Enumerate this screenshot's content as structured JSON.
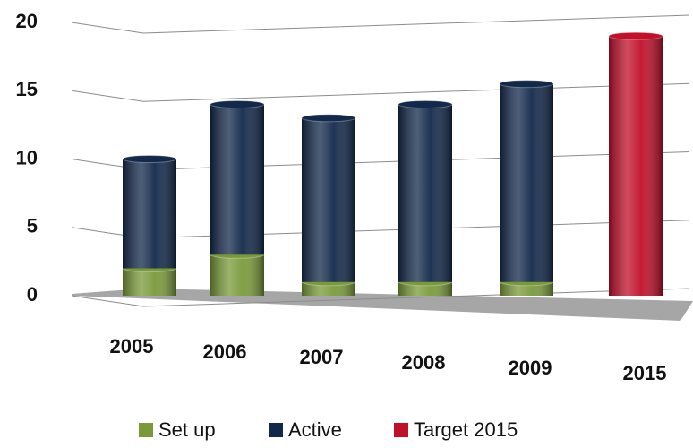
{
  "chart_data": {
    "type": "bar",
    "stacked": true,
    "categories": [
      "2005",
      "2006",
      "2007",
      "2008",
      "2009",
      "2015"
    ],
    "series": [
      {
        "name": "Set up",
        "color": "#7a9a3a",
        "values": [
          2,
          3,
          1,
          1,
          1,
          null
        ]
      },
      {
        "name": "Active",
        "color": "#13294b",
        "values": [
          8,
          11,
          12,
          13,
          14.5,
          null
        ]
      },
      {
        "name": "Target 2015",
        "color": "#c0102a",
        "values": [
          null,
          null,
          null,
          null,
          null,
          19
        ]
      }
    ],
    "ylim": [
      0,
      20
    ],
    "yticks": [
      0,
      5,
      10,
      15,
      20
    ],
    "grid": true,
    "legend": "bottom"
  }
}
